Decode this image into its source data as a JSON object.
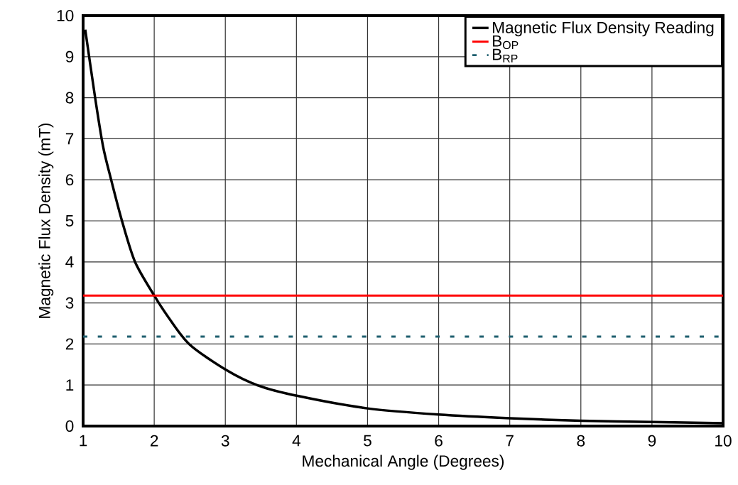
{
  "chart_data": {
    "type": "line",
    "xlabel": "Mechanical Angle (Degrees)",
    "ylabel": "Magnetic Flux Density (mT)",
    "series": [
      {
        "name": "Magnetic Flux Density Reading",
        "color": "#000000",
        "x": [
          1.03,
          1.17,
          1.28,
          1.39,
          1.545,
          1.73,
          2.0,
          2.18,
          2.49,
          3.0,
          3.46,
          4.03,
          5,
          6,
          7,
          8,
          9,
          10
        ],
        "values": [
          9.66,
          7.99,
          6.82,
          6.03,
          5.01,
          4.0,
          3.18,
          2.7,
          2.0,
          1.38,
          0.99,
          0.73,
          0.43,
          0.28,
          0.19,
          0.13,
          0.1,
          0.07
        ]
      }
    ],
    "ref_lines": [
      {
        "axis": "y",
        "value": 3.18,
        "label": "B$_{OP}$",
        "color": "#ff0000",
        "line_style": "solid"
      },
      {
        "axis": "y",
        "value": 2.18,
        "label": "B$_{RP}$",
        "color": "#1f5f6f",
        "line_style": "dashed"
      }
    ],
    "xlim": [
      1,
      10
    ],
    "ylim": [
      0,
      10
    ],
    "xticks": [
      1,
      2,
      3,
      4,
      5,
      6,
      7,
      8,
      9,
      10
    ],
    "yticks": [
      0,
      1,
      2,
      3,
      4,
      5,
      6,
      7,
      8,
      9,
      10
    ],
    "grid": true,
    "legend": "top right",
    "marker": "none",
    "line_style": "solid"
  }
}
